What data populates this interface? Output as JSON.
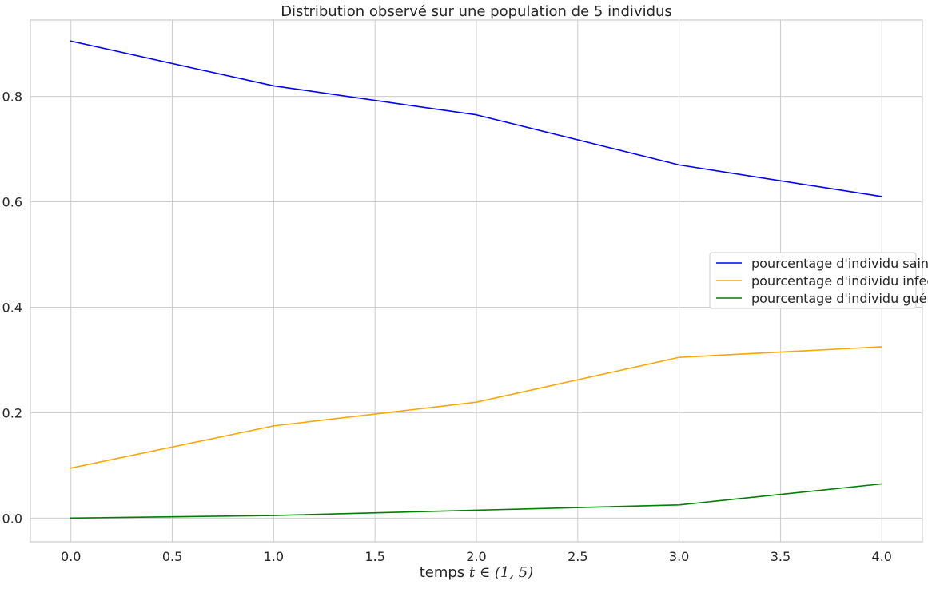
{
  "chart_data": {
    "type": "line",
    "title": "Distribution observé sur une population de 5 individus",
    "xlabel": "temps ",
    "xlabel_math": "t ∈ (1, 5)",
    "ylabel": "",
    "x": [
      0,
      1,
      2,
      3,
      4
    ],
    "xlim": [
      -0.2,
      4.2
    ],
    "ylim": [
      -0.045,
      0.945
    ],
    "xticks": [
      0.0,
      0.5,
      1.0,
      1.5,
      2.0,
      2.5,
      3.0,
      3.5,
      4.0
    ],
    "xtick_labels": [
      "0.0",
      "0.5",
      "1.0",
      "1.5",
      "2.0",
      "2.5",
      "3.0",
      "3.5",
      "4.0"
    ],
    "yticks": [
      0.0,
      0.2,
      0.4,
      0.6,
      0.8
    ],
    "ytick_labels": [
      "0.0",
      "0.2",
      "0.4",
      "0.6",
      "0.8"
    ],
    "grid": true,
    "legend_position": "center-right",
    "series": [
      {
        "name": "pourcentage d'individu sain",
        "color": "#0000ff",
        "values": [
          0.905,
          0.82,
          0.765,
          0.67,
          0.61
        ]
      },
      {
        "name": "pourcentage d'individu infecté",
        "color": "#ffa500",
        "values": [
          0.095,
          0.175,
          0.22,
          0.305,
          0.325
        ]
      },
      {
        "name": "pourcentage d'individu guéri",
        "color": "#008000",
        "values": [
          0.0,
          0.005,
          0.015,
          0.025,
          0.065
        ]
      }
    ]
  }
}
